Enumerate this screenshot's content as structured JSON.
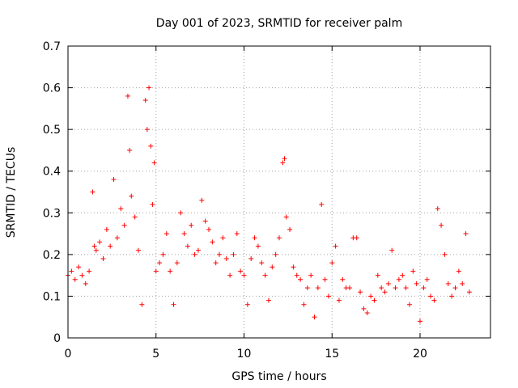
{
  "chart_data": {
    "type": "scatter",
    "title": "Day 001 of 2023, SRMTID for receiver palm",
    "xlabel": "GPS time / hours",
    "ylabel": "SRMTID / TECUs",
    "xlim": [
      0,
      24
    ],
    "ylim": [
      0,
      0.7
    ],
    "xticks": [
      0,
      5,
      10,
      15,
      20
    ],
    "yticks": [
      0,
      0.1,
      0.2,
      0.3,
      0.4,
      0.5,
      0.6,
      0.7
    ],
    "xtick_labels": [
      "0",
      "5",
      "10",
      "15",
      "20"
    ],
    "ytick_labels": [
      "0",
      "0.1",
      "0.2",
      "0.3",
      "0.4",
      "0.5",
      "0.6",
      "0.7"
    ],
    "grid": true,
    "marker": "+",
    "color": "#ff0000",
    "series": [
      {
        "name": "palm",
        "x": [
          0.0,
          0.2,
          0.4,
          0.6,
          0.8,
          1.0,
          1.2,
          1.4,
          1.5,
          1.6,
          1.8,
          2.0,
          2.2,
          2.4,
          2.6,
          2.8,
          3.0,
          3.2,
          3.4,
          3.5,
          3.6,
          3.8,
          4.0,
          4.2,
          4.4,
          4.5,
          4.6,
          4.7,
          4.8,
          4.9,
          5.0,
          5.2,
          5.4,
          5.6,
          5.8,
          6.0,
          6.2,
          6.4,
          6.6,
          6.8,
          7.0,
          7.2,
          7.4,
          7.6,
          7.8,
          8.0,
          8.2,
          8.4,
          8.6,
          8.8,
          9.0,
          9.2,
          9.4,
          9.6,
          9.8,
          10.0,
          10.2,
          10.4,
          10.6,
          10.8,
          11.0,
          11.2,
          11.4,
          11.6,
          11.8,
          12.0,
          12.2,
          12.3,
          12.4,
          12.6,
          12.8,
          13.0,
          13.2,
          13.4,
          13.6,
          13.8,
          14.0,
          14.2,
          14.4,
          14.6,
          14.8,
          15.0,
          15.2,
          15.4,
          15.6,
          15.8,
          16.0,
          16.2,
          16.4,
          16.6,
          16.8,
          17.0,
          17.2,
          17.4,
          17.6,
          17.8,
          18.0,
          18.2,
          18.4,
          18.6,
          18.8,
          19.0,
          19.2,
          19.4,
          19.6,
          19.8,
          20.0,
          20.2,
          20.4,
          20.6,
          20.8,
          21.0,
          21.2,
          21.4,
          21.6,
          21.8,
          22.0,
          22.2,
          22.4,
          22.6,
          22.8
        ],
        "y": [
          0.15,
          0.16,
          0.14,
          0.17,
          0.15,
          0.13,
          0.16,
          0.35,
          0.22,
          0.21,
          0.23,
          0.19,
          0.26,
          0.22,
          0.38,
          0.24,
          0.31,
          0.27,
          0.58,
          0.45,
          0.34,
          0.29,
          0.21,
          0.08,
          0.57,
          0.5,
          0.6,
          0.46,
          0.32,
          0.42,
          0.16,
          0.18,
          0.2,
          0.25,
          0.16,
          0.08,
          0.18,
          0.3,
          0.25,
          0.22,
          0.27,
          0.2,
          0.21,
          0.33,
          0.28,
          0.26,
          0.23,
          0.18,
          0.2,
          0.24,
          0.19,
          0.15,
          0.2,
          0.25,
          0.16,
          0.15,
          0.08,
          0.19,
          0.24,
          0.22,
          0.18,
          0.15,
          0.09,
          0.17,
          0.2,
          0.24,
          0.42,
          0.43,
          0.29,
          0.26,
          0.17,
          0.15,
          0.14,
          0.08,
          0.12,
          0.15,
          0.05,
          0.12,
          0.32,
          0.14,
          0.1,
          0.18,
          0.22,
          0.09,
          0.14,
          0.12,
          0.12,
          0.24,
          0.24,
          0.11,
          0.07,
          0.06,
          0.1,
          0.09,
          0.15,
          0.12,
          0.11,
          0.13,
          0.21,
          0.12,
          0.14,
          0.15,
          0.12,
          0.08,
          0.16,
          0.13,
          0.04,
          0.12,
          0.14,
          0.1,
          0.09,
          0.31,
          0.27,
          0.2,
          0.13,
          0.1,
          0.12,
          0.16,
          0.13,
          0.25,
          0.11
        ]
      }
    ]
  }
}
